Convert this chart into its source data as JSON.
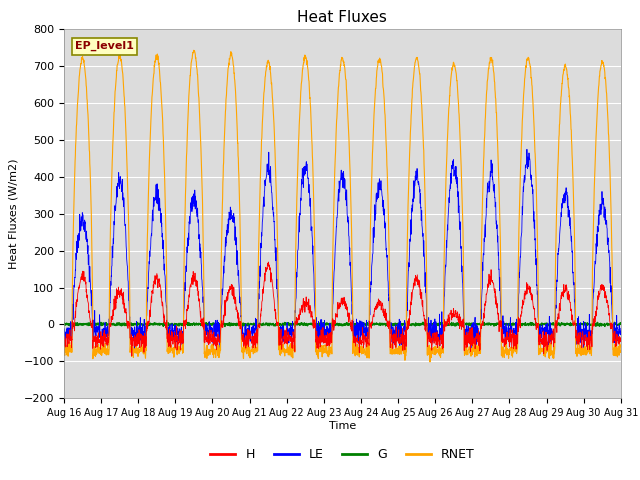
{
  "title": "Heat Fluxes",
  "xlabel": "Time",
  "ylabel": "Heat Fluxes (W/m2)",
  "ylim": [
    -200,
    800
  ],
  "yticks": [
    -200,
    -100,
    0,
    100,
    200,
    300,
    400,
    500,
    600,
    700,
    800
  ],
  "date_labels": [
    "Aug 16",
    "Aug 17",
    "Aug 18",
    "Aug 19",
    "Aug 20",
    "Aug 21",
    "Aug 22",
    "Aug 23",
    "Aug 24",
    "Aug 25",
    "Aug 26",
    "Aug 27",
    "Aug 28",
    "Aug 29",
    "Aug 30",
    "Aug 31"
  ],
  "annotation_text": "EP_level1",
  "bg_color": "#dcdcdc",
  "line_colors": {
    "H": "red",
    "LE": "blue",
    "G": "green",
    "RNET": "orange"
  },
  "n_days": 15,
  "pts_per_day": 144,
  "rnet_peaks": [
    720,
    725,
    725,
    740,
    730,
    710,
    725,
    720,
    715,
    720,
    705,
    720,
    720,
    700,
    710
  ],
  "le_peaks": [
    280,
    385,
    350,
    340,
    300,
    415,
    430,
    405,
    375,
    400,
    430,
    410,
    450,
    355,
    330
  ],
  "h_peaks": [
    130,
    90,
    130,
    125,
    100,
    160,
    60,
    65,
    60,
    125,
    30,
    125,
    100,
    95,
    100
  ],
  "figsize": [
    6.4,
    4.8
  ],
  "dpi": 100
}
